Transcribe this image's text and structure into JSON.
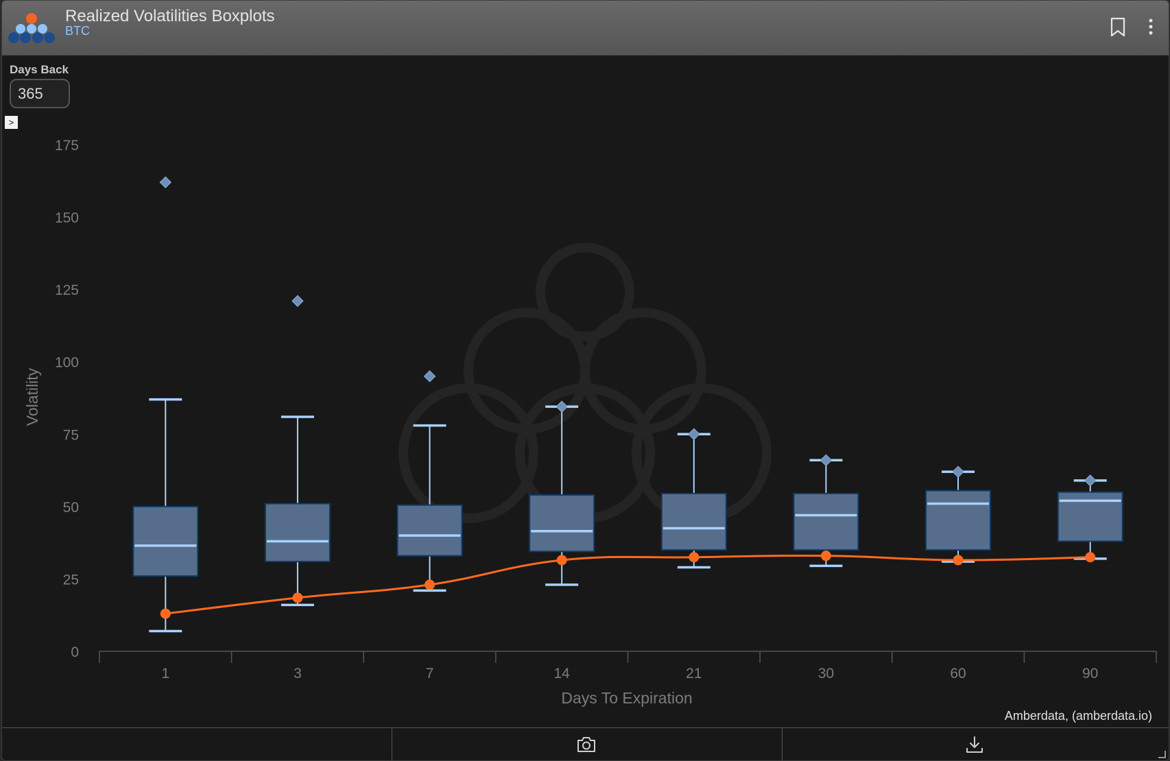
{
  "header": {
    "title": "Realized Volatilities Boxplots",
    "subtitle": "BTC"
  },
  "controls": {
    "days_back_label": "Days Back",
    "days_back_value": "365"
  },
  "credit": "Amberdata, (amberdata.io)",
  "colors": {
    "box_fill": "#566e8c",
    "box_stroke": "#0f3a66",
    "whisker": "#a8d2ff",
    "outlier": "#6e8fb8",
    "line": "#ff6a1f",
    "axis_text": "#7c7c7c"
  },
  "icons": [
    "amberdata-logo",
    "bookmark-icon",
    "more-vertical-icon",
    "expand-icon",
    "camera-icon",
    "download-icon",
    "resize-icon"
  ],
  "chart_data": {
    "type": "boxplot",
    "title": "",
    "xlabel": "Days To Expiration",
    "ylabel": "Volatility",
    "ylim": [
      0,
      175
    ],
    "yticks": [
      0,
      25,
      50,
      75,
      100,
      125,
      150,
      175
    ],
    "categories": [
      "1",
      "3",
      "7",
      "14",
      "21",
      "30",
      "60",
      "90"
    ],
    "boxes": [
      {
        "min": 7,
        "q1": 26,
        "median": 36.5,
        "q3": 50,
        "max": 87,
        "outliers": [
          162
        ]
      },
      {
        "min": 16,
        "q1": 31,
        "median": 38,
        "q3": 51,
        "max": 81,
        "outliers": [
          121
        ]
      },
      {
        "min": 21,
        "q1": 33,
        "median": 40,
        "q3": 50.5,
        "max": 78,
        "outliers": [
          95
        ]
      },
      {
        "min": 23,
        "q1": 34.5,
        "median": 41.5,
        "q3": 54,
        "max": 84.5,
        "outliers": [
          84.5
        ]
      },
      {
        "min": 29,
        "q1": 35,
        "median": 42.5,
        "q3": 54.5,
        "max": 75,
        "outliers": [
          75
        ]
      },
      {
        "min": 29.5,
        "q1": 35,
        "median": 47,
        "q3": 54.5,
        "max": 66,
        "outliers": [
          66
        ]
      },
      {
        "min": 31,
        "q1": 35,
        "median": 51,
        "q3": 55.5,
        "max": 62,
        "outliers": [
          62
        ]
      },
      {
        "min": 32,
        "q1": 38,
        "median": 52,
        "q3": 55,
        "max": 59,
        "outliers": [
          59
        ]
      }
    ],
    "series": [
      {
        "type": "line",
        "values": [
          13,
          18.5,
          23,
          31.5,
          32.5,
          33,
          31.5,
          32.5
        ]
      }
    ]
  }
}
